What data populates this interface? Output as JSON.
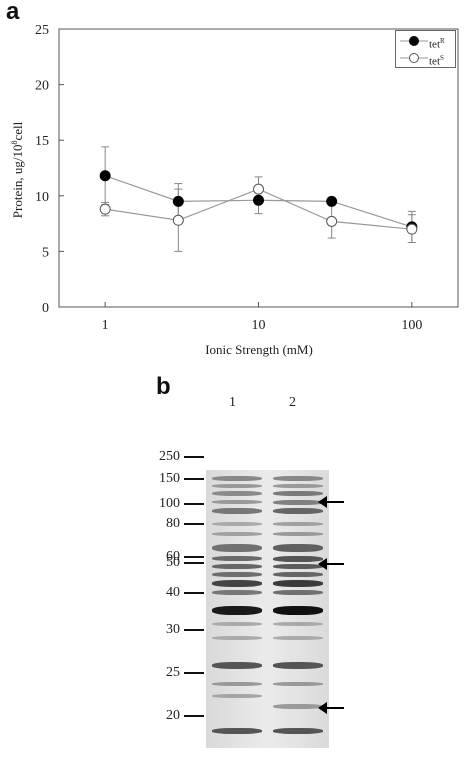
{
  "panel_a": {
    "letter": "a",
    "chart_data": {
      "type": "line",
      "x_scale": "log",
      "xlabel": "Ionic Strength (mM)",
      "ylabel": "Protein, ug/10",
      "ylabel_sup": "8",
      "ylabel_suffix": "cell",
      "xlim": [
        0.5,
        200
      ],
      "ylim": [
        0,
        25
      ],
      "x_ticks": [
        1,
        10,
        100
      ],
      "x_tick_labels": [
        "1",
        "10",
        "100"
      ],
      "y_ticks": [
        0,
        5,
        10,
        15,
        20,
        25
      ],
      "y_tick_labels": [
        "0",
        "5",
        "10",
        "15",
        "20",
        "25"
      ],
      "grid": false,
      "legend_position": "top-right",
      "x": [
        1,
        3,
        10,
        30,
        100
      ],
      "series": [
        {
          "name": "tet",
          "name_sup": "R",
          "marker": "filled-circle",
          "color": "#000000",
          "values": [
            11.8,
            9.5,
            9.6,
            9.5,
            7.2
          ],
          "err_upper": [
            2.6,
            1.6,
            1.2,
            0.3,
            1.4
          ],
          "err_lower": [
            2.6,
            1.4,
            1.2,
            0.3,
            1.4
          ]
        },
        {
          "name": "tet",
          "name_sup": "S",
          "marker": "open-circle",
          "color": "#ffffff",
          "values": [
            8.8,
            7.8,
            10.6,
            7.7,
            7.0
          ],
          "err_upper": [
            0.6,
            2.8,
            1.1,
            1.5,
            1.3
          ],
          "err_lower": [
            0.6,
            2.8,
            1.1,
            1.5,
            1.2
          ]
        }
      ]
    }
  },
  "panel_b": {
    "letter": "b",
    "lanes": [
      "1",
      "2"
    ],
    "markers": [
      "250",
      "150",
      "100",
      "80",
      "60",
      "50",
      "40",
      "30",
      "25",
      "20"
    ]
  },
  "colors": {
    "line": "#999999",
    "axis": "#555555",
    "gel_band": "#1a1a1a"
  }
}
